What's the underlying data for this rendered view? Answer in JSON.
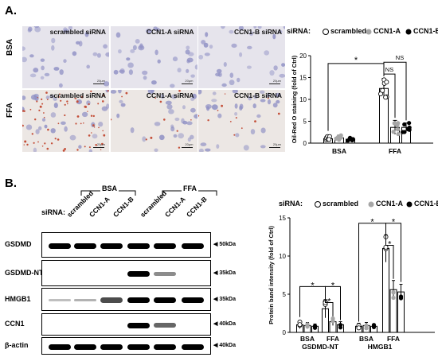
{
  "panel_a": {
    "label": "A.",
    "row_labels": [
      "BSA",
      "FFA"
    ],
    "tiles": [
      {
        "row": "BSA",
        "label": "scrambled siRNA",
        "scale": "20μm"
      },
      {
        "row": "BSA",
        "label": "CCN1-A siRNA",
        "scale": "20μm"
      },
      {
        "row": "BSA",
        "label": "CCN1-B siRNA",
        "scale": "20μm"
      },
      {
        "row": "FFA",
        "label": "scrambled siRNA",
        "scale": "20μm"
      },
      {
        "row": "FFA",
        "label": "CCN1-A siRNA",
        "scale": "20μm"
      },
      {
        "row": "FFA",
        "label": "CCN1-B siRNA",
        "scale": "20μm"
      }
    ],
    "legend": {
      "prefix": "siRNA:",
      "items": [
        "scrambled",
        "CCN1-A",
        "CCN1-B"
      ]
    }
  },
  "panel_b": {
    "label": "B.",
    "group_labels": [
      "BSA",
      "FFA"
    ],
    "sirna_label": "siRNA:",
    "lanes": [
      "scrambled",
      "CCN1-A",
      "CCN1-B",
      "scrambled",
      "CCN1-A",
      "CCN1-B"
    ],
    "blots": [
      {
        "name": "GSDMD",
        "kda": "50kDa",
        "intensity": [
          1,
          1,
          1,
          1,
          1,
          1
        ]
      },
      {
        "name": "GSDMD-NT",
        "kda": "35kDa",
        "intensity": [
          0,
          0,
          0,
          1,
          0.45,
          0
        ]
      },
      {
        "name": "HMGB1",
        "kda": "35kDa",
        "intensity": [
          0.1,
          0.3,
          0.7,
          1,
          1,
          1
        ]
      },
      {
        "name": "CCN1",
        "kda": "40kDa",
        "intensity": [
          0,
          0,
          0,
          1,
          0.6,
          0
        ]
      },
      {
        "name": "β-actin",
        "kda": "40kDa",
        "intensity": [
          1,
          1,
          1,
          1,
          1,
          1
        ]
      }
    ],
    "legend": {
      "prefix": "siRNA:",
      "items": [
        "scrambled",
        "CCN1-A",
        "CCN1-B"
      ]
    }
  },
  "colors": {
    "scrambled": "#ffffff",
    "ccn1a": "#a6a6a6",
    "ccn1b": "#000000"
  },
  "chart_data": [
    {
      "type": "bar",
      "title": "",
      "ylabel": "Oil-Red O staining (fold of Ctrl)",
      "xlabel": "",
      "ylim": [
        0,
        20
      ],
      "yticks": [
        0,
        5,
        10,
        15,
        20
      ],
      "categories": [
        "BSA",
        "FFA"
      ],
      "series": [
        {
          "name": "scrambled",
          "values": [
            1.0,
            12.5
          ],
          "errors": [
            0.5,
            2.3
          ]
        },
        {
          "name": "CCN1-A",
          "values": [
            1.2,
            3.6
          ],
          "errors": [
            0.6,
            1.6
          ]
        },
        {
          "name": "CCN1-B",
          "values": [
            0.9,
            3.6
          ],
          "errors": [
            0.3,
            1.0
          ]
        }
      ],
      "annotations": [
        "*",
        "NS",
        "NS"
      ]
    },
    {
      "type": "bar",
      "title": "",
      "ylabel": "Protein band intensity (fold of Ctrl)",
      "xlabel": "",
      "ylim": [
        0,
        15
      ],
      "yticks": [
        0,
        5,
        10,
        15
      ],
      "categories": [
        "BSA",
        "FFA",
        "BSA",
        "FFA"
      ],
      "groups": [
        "GSDMD-NT",
        "HMGB1"
      ],
      "series": [
        {
          "name": "scrambled",
          "values": [
            1.0,
            3.1,
            0.8,
            11.0
          ],
          "errors": [
            0.5,
            1.2,
            0.4,
            1.8
          ]
        },
        {
          "name": "CCN1-A",
          "values": [
            0.9,
            1.4,
            0.9,
            5.6
          ],
          "errors": [
            0.4,
            0.5,
            0.4,
            1.2
          ]
        },
        {
          "name": "CCN1-B",
          "values": [
            0.8,
            1.0,
            0.8,
            5.3
          ],
          "errors": [
            0.3,
            0.4,
            0.3,
            1.0
          ]
        }
      ],
      "annotations": [
        "*",
        "*",
        "*",
        "*",
        "*",
        "*"
      ]
    }
  ]
}
